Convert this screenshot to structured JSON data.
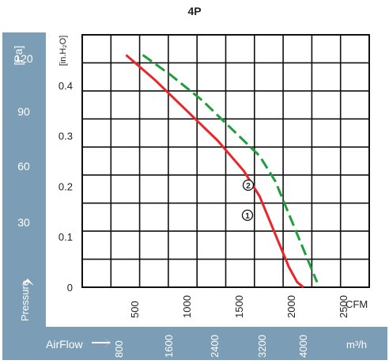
{
  "chart_data": {
    "type": "line",
    "title": "4P",
    "left_axis": {
      "unit_label": "[Pa]",
      "ticks": [
        "30",
        "60",
        "90",
        "120"
      ],
      "title": "Pressure"
    },
    "y_axis": {
      "unit_label": "[in.H₂O]",
      "ticks": [
        "0",
        "0.1",
        "0.2",
        "0.3",
        "0.4"
      ],
      "ylim": [
        0,
        0.5
      ]
    },
    "x_axis": {
      "unit_label": "CFM",
      "ticks": [
        "500",
        "1000",
        "1500",
        "2000",
        "2500"
      ],
      "xlim": [
        0,
        2750
      ]
    },
    "bottom_axis": {
      "title": "AirFlow",
      "unit_label": "m³/h",
      "ticks": [
        "800",
        "1600",
        "2400",
        "3200",
        "4000"
      ]
    },
    "grid": true,
    "series": [
      {
        "name": "①",
        "color": "#e8262b",
        "style": "solid",
        "x": [
          420,
          700,
          1000,
          1300,
          1550,
          1700,
          1800,
          1900,
          1980,
          2060,
          2120
        ],
        "y": [
          0.46,
          0.41,
          0.35,
          0.29,
          0.23,
          0.18,
          0.13,
          0.08,
          0.04,
          0.01,
          0.0
        ]
      },
      {
        "name": "②",
        "color": "#1e9e3c",
        "style": "dashed",
        "x": [
          580,
          850,
          1150,
          1450,
          1700,
          1850,
          1950,
          2050,
          2150,
          2250
        ],
        "y": [
          0.46,
          0.42,
          0.37,
          0.31,
          0.26,
          0.21,
          0.16,
          0.11,
          0.06,
          0.01
        ]
      }
    ]
  }
}
